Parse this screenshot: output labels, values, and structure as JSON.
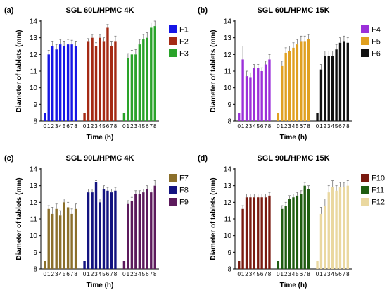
{
  "chart_data": [
    {
      "type": "bar",
      "panel_label": "(a)",
      "title": "SGL 60L/HPMC 4K",
      "xlabel": "Time (h)",
      "ylabel": "Diameter of tablets (mm)",
      "ylim": [
        8,
        14
      ],
      "yticks": [
        8,
        9,
        10,
        11,
        12,
        13,
        14
      ],
      "legend_position": "right",
      "categories": [
        "0",
        "1",
        "2",
        "3",
        "4",
        "5",
        "6",
        "7",
        "8"
      ],
      "series": [
        {
          "name": "F1",
          "color": "#1616e6",
          "values": [
            8.5,
            12.0,
            12.5,
            12.3,
            12.6,
            12.5,
            12.6,
            12.6,
            12.5
          ],
          "errors": [
            0,
            0.25,
            0.3,
            0.3,
            0.3,
            0.3,
            0.3,
            0.25,
            0.3
          ]
        },
        {
          "name": "F2",
          "color": "#a52a14",
          "values": [
            8.5,
            12.8,
            13.0,
            12.5,
            13.0,
            12.8,
            13.6,
            12.5,
            12.8
          ],
          "errors": [
            0,
            0.15,
            0.2,
            0.2,
            0.2,
            0.2,
            0.2,
            0.3,
            0.3
          ]
        },
        {
          "name": "F3",
          "color": "#2aa32a",
          "values": [
            8.5,
            11.8,
            12.0,
            12.0,
            12.6,
            12.9,
            13.0,
            13.6,
            13.7
          ],
          "errors": [
            0,
            0.25,
            0.25,
            0.3,
            0.3,
            0.3,
            0.3,
            0.3,
            0.3
          ]
        }
      ]
    },
    {
      "type": "bar",
      "panel_label": "(b)",
      "title": "SGL 60L/HPMC 15K",
      "xlabel": "Time (h)",
      "ylabel": "Diameter of tablets (mm)",
      "ylim": [
        8,
        14
      ],
      "yticks": [
        8,
        9,
        10,
        11,
        12,
        13,
        14
      ],
      "legend_position": "right",
      "categories": [
        "0",
        "1",
        "2",
        "3",
        "4",
        "5",
        "6",
        "7",
        "8"
      ],
      "series": [
        {
          "name": "F4",
          "color": "#9b30d9",
          "values": [
            8.5,
            11.7,
            10.7,
            10.6,
            11.2,
            11.2,
            11.0,
            11.4,
            11.7
          ],
          "errors": [
            0,
            0.8,
            0.3,
            0.3,
            0.2,
            0.2,
            0.2,
            0.2,
            0.3
          ]
        },
        {
          "name": "F5",
          "color": "#e0a020",
          "values": [
            8.5,
            11.3,
            12.1,
            12.2,
            12.4,
            12.6,
            12.8,
            12.8,
            12.9
          ],
          "errors": [
            0,
            0.3,
            0.3,
            0.3,
            0.3,
            0.3,
            0.3,
            0.3,
            0.3
          ]
        },
        {
          "name": "F6",
          "color": "#111111",
          "values": [
            8.5,
            11.1,
            11.9,
            11.9,
            11.9,
            12.3,
            12.7,
            12.8,
            12.7
          ],
          "errors": [
            0,
            0.3,
            0.3,
            0.3,
            0.3,
            0.3,
            0.3,
            0.3,
            0.3
          ]
        }
      ]
    },
    {
      "type": "bar",
      "panel_label": "(c)",
      "title": "SGL 90L/HPMC 4K",
      "xlabel": "Time (h)",
      "ylabel": "Diameter of tablets (mm)",
      "ylim": [
        8,
        14
      ],
      "yticks": [
        8,
        9,
        10,
        11,
        12,
        13,
        14
      ],
      "legend_position": "right",
      "categories": [
        "0",
        "1",
        "2",
        "3",
        "4",
        "5",
        "6",
        "7",
        "8"
      ],
      "series": [
        {
          "name": "F7",
          "color": "#8b6f2a",
          "values": [
            8.5,
            11.6,
            11.3,
            11.6,
            11.2,
            12.0,
            11.7,
            11.3,
            11.6
          ],
          "errors": [
            0,
            0.2,
            0.4,
            0.3,
            0.3,
            0.2,
            0.3,
            0.3,
            0.3
          ]
        },
        {
          "name": "F8",
          "color": "#131380",
          "values": [
            8.5,
            12.6,
            12.6,
            13.2,
            12.0,
            12.8,
            12.7,
            12.6,
            12.7
          ],
          "errors": [
            0,
            0.2,
            0.2,
            0.1,
            0.2,
            0.2,
            0.2,
            0.2,
            0.2
          ]
        },
        {
          "name": "F9",
          "color": "#5c1a5c",
          "values": [
            8.5,
            11.9,
            12.1,
            12.5,
            12.5,
            12.6,
            12.8,
            12.6,
            13.0
          ],
          "errors": [
            0,
            0.2,
            0.2,
            0.2,
            0.2,
            0.2,
            0.2,
            0.2,
            0.3
          ]
        }
      ]
    },
    {
      "type": "bar",
      "panel_label": "(d)",
      "title": "SGL 90L/HPMC 15K",
      "xlabel": "Time (h)",
      "ylabel": "Diameter of tablets (mm)",
      "ylim": [
        8,
        14
      ],
      "yticks": [
        8,
        9,
        10,
        11,
        12,
        13,
        14
      ],
      "legend_position": "right",
      "categories": [
        "0",
        "1",
        "2",
        "3",
        "4",
        "5",
        "6",
        "7",
        "8"
      ],
      "series": [
        {
          "name": "F10",
          "color": "#7a1a10",
          "values": [
            8.5,
            11.6,
            12.3,
            12.3,
            12.3,
            12.3,
            12.3,
            12.3,
            12.4
          ],
          "errors": [
            0,
            0.2,
            0.2,
            0.2,
            0.2,
            0.2,
            0.2,
            0.2,
            0.2
          ]
        },
        {
          "name": "F11",
          "color": "#1e5c10",
          "values": [
            8.5,
            11.6,
            11.8,
            12.2,
            12.3,
            12.4,
            12.5,
            13.0,
            12.8
          ],
          "errors": [
            0,
            0.2,
            0.2,
            0.2,
            0.2,
            0.2,
            0.2,
            0.2,
            0.2
          ]
        },
        {
          "name": "F12",
          "color": "#ead8a0",
          "values": [
            8.5,
            11.3,
            11.8,
            12.6,
            12.9,
            12.7,
            12.9,
            12.9,
            13.0
          ],
          "errors": [
            0,
            0.4,
            0.4,
            0.4,
            0.4,
            0.3,
            0.3,
            0.3,
            0.3
          ]
        }
      ]
    }
  ]
}
